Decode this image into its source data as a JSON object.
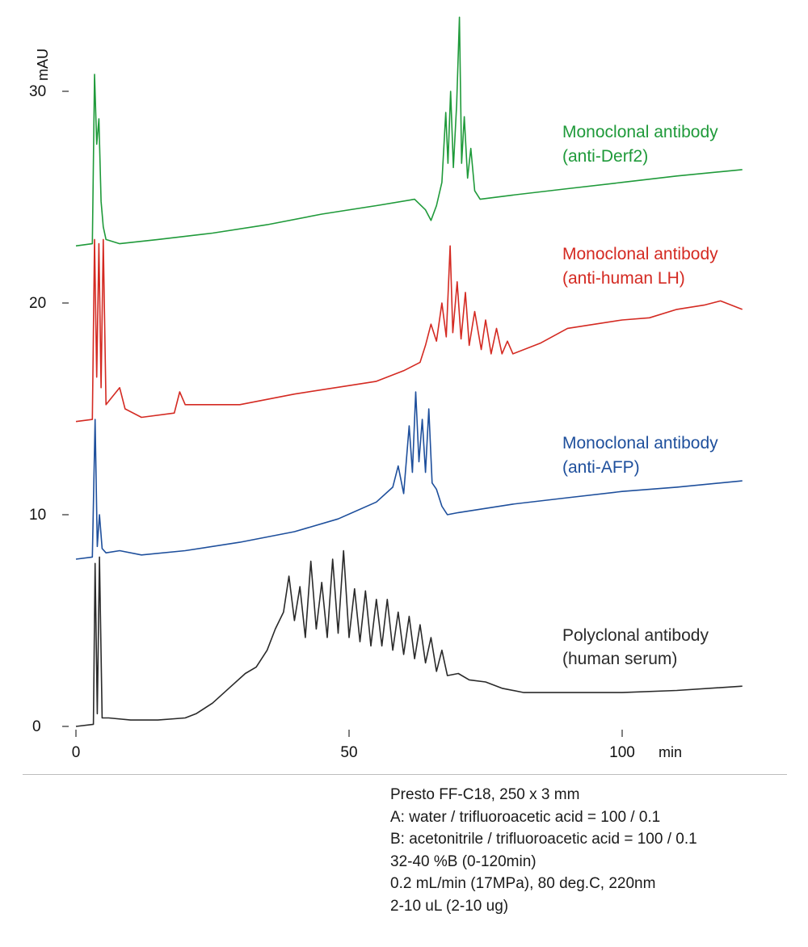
{
  "chart_data": {
    "type": "line",
    "xlabel": "min",
    "ylabel": "mAU",
    "xlim": [
      0,
      122
    ],
    "ylim": [
      0,
      33
    ],
    "x_ticks": [
      "0",
      "50",
      "100"
    ],
    "y_ticks": [
      "0",
      "10",
      "20",
      "30"
    ],
    "grid": false,
    "legend": "inline labels to the right of each trace",
    "series": [
      {
        "label_lines": [
          "Monoclonal antibody",
          "(anti-Derf2)"
        ],
        "color": "#1f9a3a",
        "points": [
          [
            0,
            22.7
          ],
          [
            3.0,
            22.8
          ],
          [
            3.4,
            30.8
          ],
          [
            3.8,
            27.5
          ],
          [
            4.2,
            28.7
          ],
          [
            4.6,
            24.8
          ],
          [
            5.0,
            23.6
          ],
          [
            5.5,
            23.0
          ],
          [
            8,
            22.8
          ],
          [
            15,
            23.0
          ],
          [
            25,
            23.3
          ],
          [
            35,
            23.7
          ],
          [
            45,
            24.2
          ],
          [
            55,
            24.6
          ],
          [
            62,
            24.9
          ],
          [
            64,
            24.4
          ],
          [
            65,
            23.9
          ],
          [
            66,
            24.6
          ],
          [
            67,
            25.7
          ],
          [
            67.7,
            29.0
          ],
          [
            68.1,
            26.6
          ],
          [
            68.6,
            30.0
          ],
          [
            69.1,
            26.4
          ],
          [
            69.7,
            29.4
          ],
          [
            70.2,
            33.5
          ],
          [
            70.6,
            26.6
          ],
          [
            71.1,
            28.8
          ],
          [
            71.7,
            25.9
          ],
          [
            72.3,
            27.3
          ],
          [
            73,
            25.3
          ],
          [
            74,
            24.9
          ],
          [
            80,
            25.1
          ],
          [
            90,
            25.4
          ],
          [
            100,
            25.7
          ],
          [
            110,
            26.0
          ],
          [
            122,
            26.3
          ]
        ]
      },
      {
        "label_lines": [
          "Monoclonal antibody",
          "(anti-human LH)"
        ],
        "color": "#d42a22",
        "points": [
          [
            0,
            14.4
          ],
          [
            3.0,
            14.5
          ],
          [
            3.4,
            23.0
          ],
          [
            3.8,
            16.5
          ],
          [
            4.2,
            22.8
          ],
          [
            4.6,
            16.0
          ],
          [
            5.0,
            23.0
          ],
          [
            5.5,
            15.2
          ],
          [
            8,
            16.0
          ],
          [
            9,
            15.0
          ],
          [
            12,
            14.6
          ],
          [
            18,
            14.8
          ],
          [
            19,
            15.8
          ],
          [
            20,
            15.2
          ],
          [
            30,
            15.2
          ],
          [
            40,
            15.7
          ],
          [
            50,
            16.1
          ],
          [
            55,
            16.3
          ],
          [
            60,
            16.8
          ],
          [
            63,
            17.2
          ],
          [
            64,
            18.0
          ],
          [
            65,
            19.0
          ],
          [
            66,
            18.2
          ],
          [
            67,
            20.0
          ],
          [
            67.8,
            18.4
          ],
          [
            68.5,
            22.7
          ],
          [
            69.0,
            18.6
          ],
          [
            69.8,
            21.0
          ],
          [
            70.5,
            18.3
          ],
          [
            71.3,
            20.5
          ],
          [
            72,
            18.0
          ],
          [
            73,
            19.6
          ],
          [
            74.2,
            17.8
          ],
          [
            75,
            19.2
          ],
          [
            76,
            17.6
          ],
          [
            77,
            18.8
          ],
          [
            78,
            17.6
          ],
          [
            79,
            18.2
          ],
          [
            80,
            17.6
          ],
          [
            85,
            18.1
          ],
          [
            90,
            18.8
          ],
          [
            95,
            19.0
          ],
          [
            100,
            19.2
          ],
          [
            105,
            19.3
          ],
          [
            110,
            19.7
          ],
          [
            115,
            19.9
          ],
          [
            118,
            20.1
          ],
          [
            122,
            19.7
          ]
        ]
      },
      {
        "label_lines": [
          "Monoclonal antibody",
          "(anti-AFP)"
        ],
        "color": "#1e4f9c",
        "points": [
          [
            0,
            7.9
          ],
          [
            3.0,
            8.0
          ],
          [
            3.5,
            14.5
          ],
          [
            3.9,
            8.5
          ],
          [
            4.3,
            10.0
          ],
          [
            4.8,
            8.4
          ],
          [
            5.5,
            8.2
          ],
          [
            8,
            8.3
          ],
          [
            12,
            8.1
          ],
          [
            20,
            8.3
          ],
          [
            30,
            8.7
          ],
          [
            40,
            9.2
          ],
          [
            48,
            9.8
          ],
          [
            55,
            10.6
          ],
          [
            58,
            11.3
          ],
          [
            59,
            12.3
          ],
          [
            60,
            11.0
          ],
          [
            61,
            14.2
          ],
          [
            61.6,
            12.0
          ],
          [
            62.2,
            15.8
          ],
          [
            62.8,
            12.5
          ],
          [
            63.4,
            14.5
          ],
          [
            64,
            12.0
          ],
          [
            64.6,
            15.0
          ],
          [
            65.2,
            11.5
          ],
          [
            66,
            11.2
          ],
          [
            67,
            10.4
          ],
          [
            68,
            10.0
          ],
          [
            70,
            10.1
          ],
          [
            80,
            10.5
          ],
          [
            90,
            10.8
          ],
          [
            100,
            11.1
          ],
          [
            110,
            11.3
          ],
          [
            122,
            11.6
          ]
        ]
      },
      {
        "label_lines": [
          "Polyclonal antibody",
          "(human serum)"
        ],
        "color": "#2a2a2a",
        "points": [
          [
            0,
            0
          ],
          [
            3.2,
            0.1
          ],
          [
            3.5,
            7.7
          ],
          [
            3.9,
            0.6
          ],
          [
            4.3,
            8.0
          ],
          [
            4.8,
            0.4
          ],
          [
            6,
            0.4
          ],
          [
            10,
            0.3
          ],
          [
            15,
            0.3
          ],
          [
            20,
            0.4
          ],
          [
            22,
            0.6
          ],
          [
            25,
            1.1
          ],
          [
            28,
            1.8
          ],
          [
            31,
            2.5
          ],
          [
            33,
            2.8
          ],
          [
            35,
            3.6
          ],
          [
            36.5,
            4.6
          ],
          [
            38,
            5.4
          ],
          [
            39,
            7.1
          ],
          [
            40,
            5.0
          ],
          [
            41,
            6.6
          ],
          [
            42,
            4.2
          ],
          [
            43,
            7.8
          ],
          [
            44,
            4.6
          ],
          [
            45,
            6.8
          ],
          [
            46,
            4.2
          ],
          [
            47,
            7.9
          ],
          [
            48,
            4.4
          ],
          [
            49,
            8.3
          ],
          [
            50,
            4.2
          ],
          [
            51,
            6.5
          ],
          [
            52,
            4.0
          ],
          [
            53,
            6.4
          ],
          [
            54,
            3.8
          ],
          [
            55,
            6.0
          ],
          [
            56,
            3.8
          ],
          [
            57,
            6.0
          ],
          [
            58,
            3.6
          ],
          [
            59,
            5.4
          ],
          [
            60,
            3.4
          ],
          [
            61,
            5.2
          ],
          [
            62,
            3.2
          ],
          [
            63,
            4.8
          ],
          [
            64,
            3.0
          ],
          [
            65,
            4.2
          ],
          [
            66,
            2.6
          ],
          [
            67,
            3.6
          ],
          [
            68,
            2.4
          ],
          [
            70,
            2.5
          ],
          [
            72,
            2.2
          ],
          [
            75,
            2.1
          ],
          [
            78,
            1.8
          ],
          [
            82,
            1.6
          ],
          [
            90,
            1.6
          ],
          [
            100,
            1.6
          ],
          [
            110,
            1.7
          ],
          [
            122,
            1.9
          ]
        ]
      }
    ]
  },
  "conditions": [
    "Presto FF-C18, 250 x 3 mm",
    "A: water / trifluoroacetic acid = 100 / 0.1",
    "B: acetonitrile / trifluoroacetic acid = 100 / 0.1",
    "32-40 %B (0-120min)",
    "0.2 mL/min (17MPa), 80 deg.C, 220nm",
    "2-10 uL (2-10 ug)"
  ]
}
